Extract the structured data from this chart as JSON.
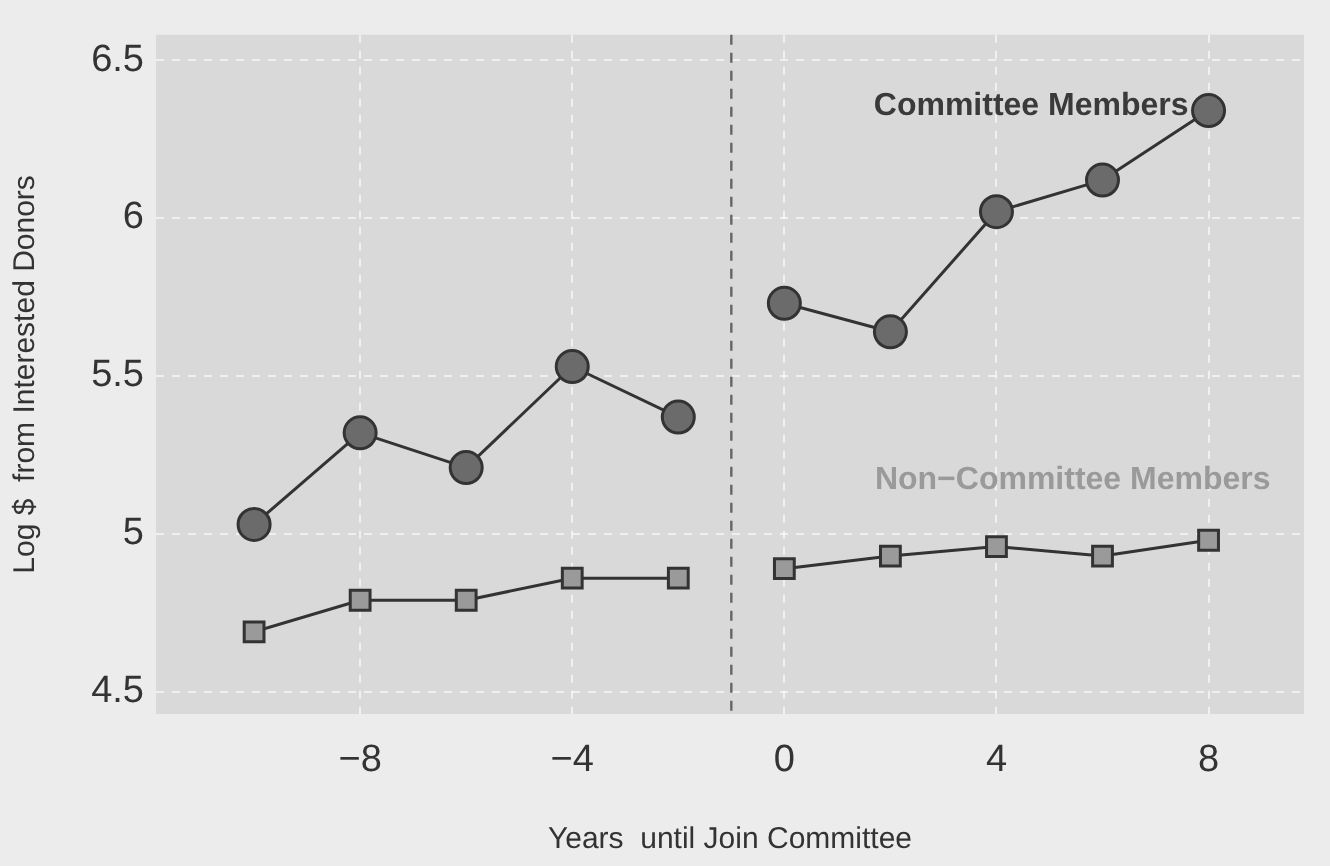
{
  "chart_data": {
    "type": "line",
    "xlabel": "Years  until Join Committee",
    "ylabel": "Log $  from Interested Donors",
    "x": [
      -10,
      -8,
      -6,
      -4,
      -2,
      -1,
      0,
      2,
      4,
      6,
      8
    ],
    "series": [
      {
        "name": "Committee Members",
        "color": "#6b6b6b",
        "marker": "circle",
        "values": [
          5.03,
          5.32,
          5.21,
          5.53,
          5.37,
          null,
          5.73,
          5.64,
          6.02,
          6.12,
          6.34
        ]
      },
      {
        "name": "Non−Committee Members",
        "color": "#9a9a9a",
        "marker": "square",
        "values": [
          4.69,
          4.79,
          4.79,
          4.86,
          4.86,
          null,
          4.89,
          4.93,
          4.96,
          4.93,
          4.98
        ]
      }
    ],
    "xlim": [
      -11.85,
      9.8
    ],
    "ylim": [
      4.43,
      6.58
    ],
    "xticks": [
      {
        "value": -8,
        "label": "−8"
      },
      {
        "value": -4,
        "label": "−4"
      },
      0,
      4,
      8
    ],
    "yticks": [
      4.5,
      5,
      5.5,
      6,
      6.5
    ],
    "ref_lines": [
      {
        "axis": "x",
        "value": -1,
        "color": "#666666",
        "line_style": "dashed"
      }
    ],
    "grid": true,
    "legend": false
  }
}
